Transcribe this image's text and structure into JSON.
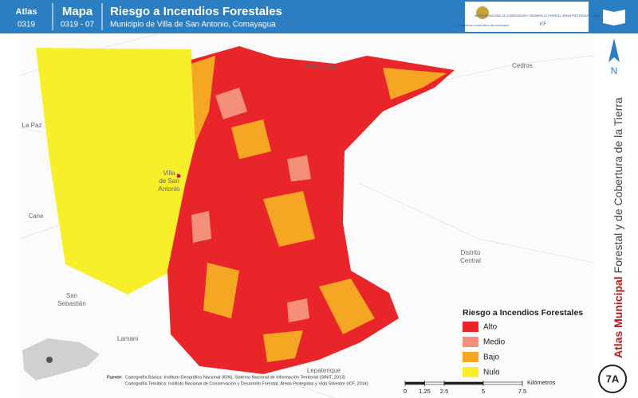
{
  "header": {
    "atlas_label": "Atlas",
    "atlas_code": "0319",
    "map_label": "Mapa",
    "map_code": "0319 - 07",
    "title": "Riesgo a Incendios Forestales",
    "subtitle": "Municipio de Villa de San Antonio, Comayagua",
    "logo_left": "GOBIERNO DE LA REPÚBLICA DE HONDURAS",
    "logo_right": "INSTITUTO NACIONAL DE CONSERVACIÓN Y DESARROLLO FORESTAL, ÁREAS PROTEGIDAS Y VIDA SILVESTRE",
    "logo_right_short": "ICF"
  },
  "places": [
    "Comayagua",
    "Cedros",
    "La Paz",
    "Villa de San Antonio",
    "Cane",
    "San Sebastián",
    "Lamani",
    "Distrito Central",
    "Lepaterique"
  ],
  "legend": {
    "title": "Riesgo a Incendios Forestales",
    "items": [
      {
        "label": "Alto",
        "color": "#e8262a"
      },
      {
        "label": "Medio",
        "color": "#f4907a"
      },
      {
        "label": "Bajo",
        "color": "#f5a623"
      },
      {
        "label": "Nulo",
        "color": "#f7ef2a"
      }
    ]
  },
  "sidebar": {
    "north": "N",
    "atlas_bold": "Atlas Municipal",
    "atlas_rest": "Forestal y de Cobertura de la Tierra",
    "code": "7A"
  },
  "scale": {
    "ticks": [
      0,
      1.25,
      2.5,
      5,
      7.5
    ],
    "unit": "Kilómetros"
  },
  "source": {
    "label": "Fuente:",
    "line1": "Cartografía Básica: Instituto Geográfico Nacional (IGN), Sistema Nacional de Información Territorial (SINIT, 2013)",
    "line2": "Cartografía Temática: Instituto Nacional de Conservación y Desarrollo Forestal, Áreas Protegidas y Vida Silvestre (ICF, 2014)"
  }
}
